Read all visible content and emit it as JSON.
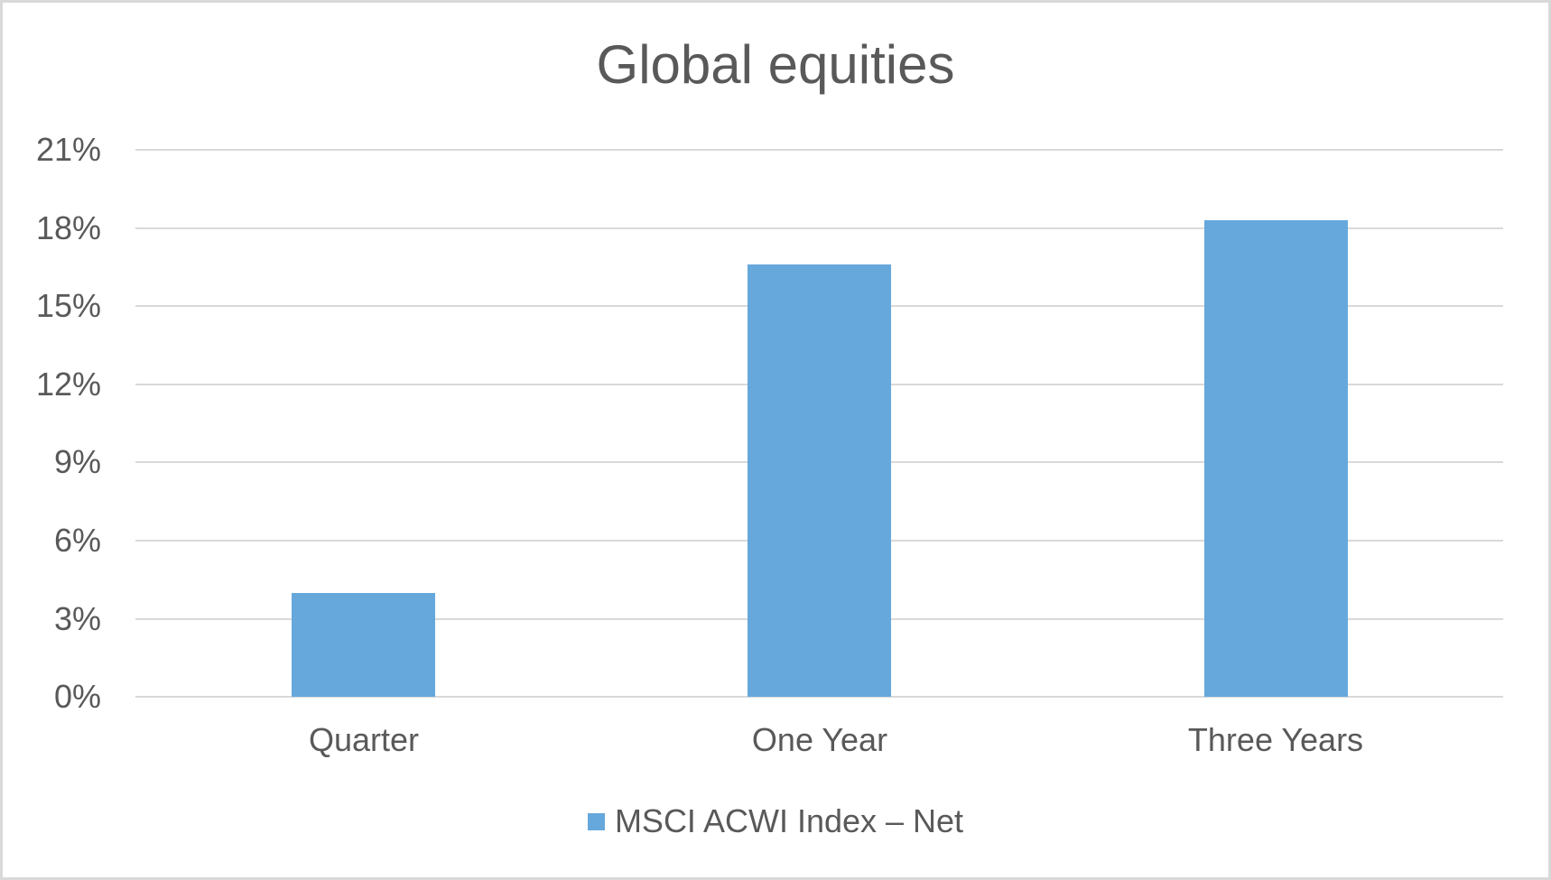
{
  "chart_data": {
    "type": "bar",
    "title": "Global equities",
    "categories": [
      "Quarter",
      "One Year",
      "Three Years"
    ],
    "series": [
      {
        "name": "MSCI ACWI Index – Net",
        "color": "#66A8DB",
        "values": [
          4.0,
          16.6,
          18.3
        ]
      }
    ],
    "xlabel": "",
    "ylabel": "",
    "ylim": [
      0,
      21
    ],
    "yticks": [
      "0%",
      "3%",
      "6%",
      "9%",
      "12%",
      "15%",
      "18%",
      "21%"
    ],
    "grid": true,
    "legend_position": "bottom"
  },
  "colors": {
    "bar": "#66A8DB",
    "text": "#595959",
    "grid": "#D9D9D9",
    "border": "#D9D9D9"
  }
}
